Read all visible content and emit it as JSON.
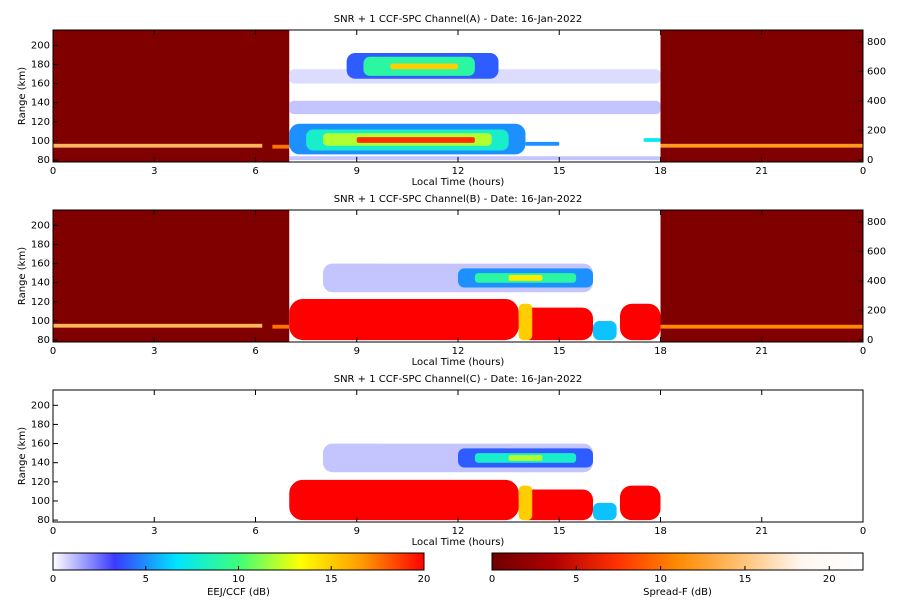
{
  "chart_data": [
    {
      "type": "heatmap",
      "title": "SNR + 1 CCF-SPC Channel(A) - Date: 16-Jan-2022",
      "x_label": "Local Time (hours)",
      "y_label": "Range (km)",
      "xlim": [
        0,
        24
      ],
      "xticks": [
        0,
        3,
        6,
        9,
        12,
        15,
        18,
        21,
        {
          "value": 24,
          "label": "0"
        }
      ],
      "ylim": [
        78,
        216
      ],
      "yticks": [
        80,
        100,
        120,
        140,
        160,
        180,
        200
      ],
      "y2lim": [
        -14,
        881
      ],
      "y2ticks": [
        0,
        200,
        400,
        600,
        800
      ],
      "spread_f": [
        {
          "x": [
            0,
            7
          ],
          "y": [
            78,
            216
          ],
          "value": 1
        },
        {
          "x": [
            18,
            24
          ],
          "y": [
            78,
            216
          ],
          "value": 1
        },
        {
          "x": [
            0,
            6.2
          ],
          "y": [
            93,
            97
          ],
          "value": 14
        },
        {
          "x": [
            6.5,
            7
          ],
          "y": [
            92,
            96
          ],
          "value": 10
        },
        {
          "x": [
            18,
            24
          ],
          "y": [
            93,
            97
          ],
          "value": 12
        }
      ],
      "eej": [
        {
          "x": [
            7,
            18
          ],
          "y": [
            128,
            142
          ],
          "value": 1
        },
        {
          "x": [
            7,
            18
          ],
          "y": [
            160,
            175
          ],
          "value": 0.6
        },
        {
          "x": [
            7,
            18
          ],
          "y": [
            80,
            84
          ],
          "value": 1
        },
        {
          "x": [
            7,
            14
          ],
          "y": [
            86,
            118
          ],
          "value": 5
        },
        {
          "x": [
            7.5,
            13.5
          ],
          "y": [
            90,
            112
          ],
          "value": 8
        },
        {
          "x": [
            8,
            13
          ],
          "y": [
            95,
            108
          ],
          "value": 12
        },
        {
          "x": [
            9,
            12.5
          ],
          "y": [
            98,
            104
          ],
          "value": 19
        },
        {
          "x": [
            8.7,
            13.2
          ],
          "y": [
            165,
            192
          ],
          "value": 4
        },
        {
          "x": [
            9.2,
            12.5
          ],
          "y": [
            168,
            188
          ],
          "value": 9
        },
        {
          "x": [
            10,
            12
          ],
          "y": [
            175,
            181
          ],
          "value": 15
        },
        {
          "x": [
            14,
            15
          ],
          "y": [
            95,
            99
          ],
          "value": 5
        },
        {
          "x": [
            17.5,
            18
          ],
          "y": [
            99,
            103
          ],
          "value": 7
        }
      ]
    },
    {
      "type": "heatmap",
      "title": "SNR + 1 CCF-SPC Channel(B) - Date: 16-Jan-2022",
      "x_label": "Local Time (hours)",
      "y_label": "Range (km)",
      "xlim": [
        0,
        24
      ],
      "xticks": [
        0,
        3,
        6,
        9,
        12,
        15,
        18,
        21,
        {
          "value": 24,
          "label": "0"
        }
      ],
      "ylim": [
        78,
        216
      ],
      "yticks": [
        80,
        100,
        120,
        140,
        160,
        180,
        200
      ],
      "y2lim": [
        -14,
        881
      ],
      "y2ticks": [
        0,
        200,
        400,
        600,
        800
      ],
      "spread_f": [
        {
          "x": [
            0,
            7
          ],
          "y": [
            78,
            216
          ],
          "value": 1
        },
        {
          "x": [
            18,
            24
          ],
          "y": [
            78,
            216
          ],
          "value": 1
        },
        {
          "x": [
            0,
            6.2
          ],
          "y": [
            93,
            97
          ],
          "value": 14
        },
        {
          "x": [
            6.5,
            7
          ],
          "y": [
            92,
            96
          ],
          "value": 10
        },
        {
          "x": [
            18,
            24
          ],
          "y": [
            92,
            96
          ],
          "value": 11
        }
      ],
      "eej": [
        {
          "x": [
            8,
            16
          ],
          "y": [
            130,
            160
          ],
          "value": 1
        },
        {
          "x": [
            12,
            16
          ],
          "y": [
            135,
            155
          ],
          "value": 5
        },
        {
          "x": [
            12.5,
            15.5
          ],
          "y": [
            140,
            150
          ],
          "value": 9
        },
        {
          "x": [
            13.5,
            14.5
          ],
          "y": [
            142,
            148
          ],
          "value": 14
        },
        {
          "x": [
            7,
            13.8
          ],
          "y": [
            80,
            123
          ],
          "value": 20
        },
        {
          "x": [
            13.8,
            16
          ],
          "y": [
            80,
            114
          ],
          "value": 20
        },
        {
          "x": [
            13.8,
            14.2
          ],
          "y": [
            80,
            118
          ],
          "value": 15
        },
        {
          "x": [
            16,
            16.7
          ],
          "y": [
            80,
            100
          ],
          "value": 6
        },
        {
          "x": [
            16.8,
            18
          ],
          "y": [
            80,
            118
          ],
          "value": 20
        }
      ]
    },
    {
      "type": "heatmap",
      "title": "SNR + 1 CCF-SPC Channel(C) - Date: 16-Jan-2022",
      "x_label": "Local Time (hours)",
      "y_label": "Range (km)",
      "xlim": [
        0,
        24
      ],
      "xticks": [
        0,
        3,
        6,
        9,
        12,
        15,
        18,
        21,
        {
          "value": 24,
          "label": "0"
        }
      ],
      "ylim": [
        78,
        216
      ],
      "yticks": [
        80,
        100,
        120,
        140,
        160,
        180,
        200
      ],
      "spread_f": [],
      "eej": [
        {
          "x": [
            8,
            16
          ],
          "y": [
            130,
            160
          ],
          "value": 1
        },
        {
          "x": [
            12,
            16
          ],
          "y": [
            135,
            155
          ],
          "value": 4
        },
        {
          "x": [
            12.5,
            15.5
          ],
          "y": [
            140,
            150
          ],
          "value": 8
        },
        {
          "x": [
            13.5,
            14.5
          ],
          "y": [
            142,
            148
          ],
          "value": 12
        },
        {
          "x": [
            7,
            13.8
          ],
          "y": [
            80,
            122
          ],
          "value": 20
        },
        {
          "x": [
            13.8,
            16
          ],
          "y": [
            80,
            112
          ],
          "value": 20
        },
        {
          "x": [
            13.8,
            14.2
          ],
          "y": [
            80,
            116
          ],
          "value": 15
        },
        {
          "x": [
            16,
            16.7
          ],
          "y": [
            80,
            98
          ],
          "value": 6
        },
        {
          "x": [
            16.8,
            18
          ],
          "y": [
            80,
            116
          ],
          "value": 20
        }
      ]
    },
    {
      "type": "colorbar",
      "label": "EEJ/CCF (dB)",
      "xlim": [
        0,
        20
      ],
      "xticks": [
        0,
        5,
        10,
        15,
        20
      ],
      "colors": [
        "#ffffff",
        "#3a3aff",
        "#00e5ff",
        "#3dff7a",
        "#ffff00",
        "#ff9a00",
        "#ff0000"
      ]
    },
    {
      "type": "colorbar",
      "label": "Spread-F (dB)",
      "xlim": [
        0,
        22
      ],
      "xticks": [
        0,
        5,
        10,
        15,
        20
      ],
      "colors": [
        "#6e0000",
        "#b00000",
        "#ff3000",
        "#ff8a00",
        "#ffc070",
        "#fff6f0",
        "#ffffff"
      ]
    }
  ]
}
